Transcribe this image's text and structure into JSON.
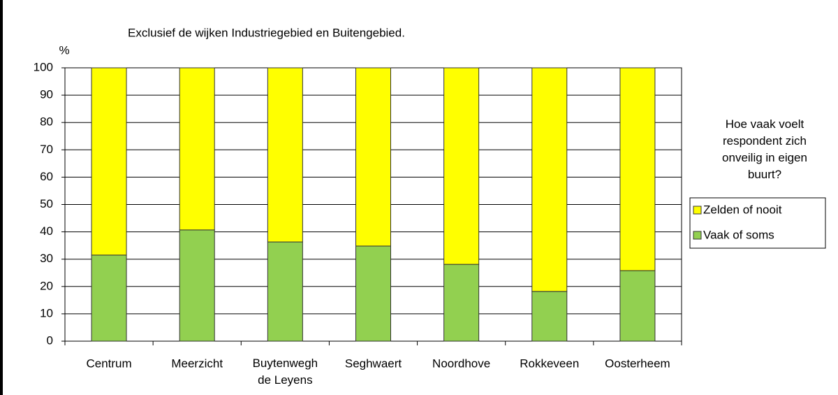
{
  "chart_data": {
    "type": "stacked_bar",
    "subtitle": "Exclusief de wijken Industriegebied en Buitengebied.",
    "y_label": "%",
    "categories": [
      "Centrum",
      "Meerzicht",
      "Buytenwegh de Leyens",
      "Seghwaert",
      "Noordhove",
      "Rokkeveen",
      "Oosterheem"
    ],
    "series": [
      {
        "name": "Vaak of soms",
        "color": "#92d050",
        "values": [
          31.5,
          40.7,
          36.3,
          34.8,
          28.1,
          18.2,
          25.8
        ]
      },
      {
        "name": "Zelden of nooit",
        "color": "#ffff00",
        "values": [
          68.5,
          59.3,
          63.7,
          65.2,
          71.9,
          81.8,
          74.2
        ]
      }
    ],
    "ylim": [
      0,
      100
    ],
    "yticks": [
      0,
      10,
      20,
      30,
      40,
      50,
      60,
      70,
      80,
      90,
      100
    ],
    "grid": true,
    "legend_title": "Hoe vaak voelt respondent zich onveilig in eigen buurt?",
    "legend_position": "right"
  }
}
